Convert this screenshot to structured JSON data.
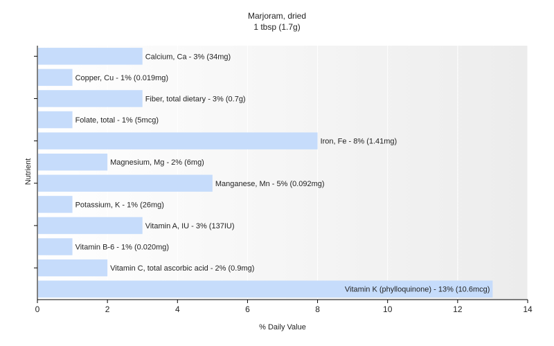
{
  "chart_data": {
    "type": "bar",
    "orientation": "horizontal",
    "title": "Marjoram, dried",
    "subtitle": "1 tbsp (1.7g)",
    "xlabel": "% Daily Value",
    "ylabel": "Nutrient",
    "xlim": [
      0,
      14
    ],
    "xticks": [
      0,
      2,
      4,
      6,
      8,
      10,
      12,
      14
    ],
    "grid": "vertical",
    "bar_color": "#c6dcfb",
    "categories": [
      "Calcium, Ca",
      "Copper, Cu",
      "Fiber, total dietary",
      "Folate, total",
      "Iron, Fe",
      "Magnesium, Mg",
      "Manganese, Mn",
      "Potassium, K",
      "Vitamin A, IU",
      "Vitamin B-6",
      "Vitamin C, total ascorbic acid",
      "Vitamin K (phylloquinone)"
    ],
    "values": [
      3,
      1,
      3,
      1,
      8,
      2,
      5,
      1,
      3,
      1,
      2,
      13
    ],
    "labels": [
      "Calcium, Ca - 3% (34mg)",
      "Copper, Cu - 1% (0.019mg)",
      "Fiber, total dietary - 3% (0.7g)",
      "Folate, total - 1% (5mcg)",
      "Iron, Fe - 8% (1.41mg)",
      "Magnesium, Mg - 2% (6mg)",
      "Manganese, Mn - 5% (0.092mg)",
      "Potassium, K - 1% (26mg)",
      "Vitamin A, IU - 3% (137IU)",
      "Vitamin B-6 - 1% (0.020mg)",
      "Vitamin C, total ascorbic acid - 2% (0.9mg)",
      "Vitamin K (phylloquinone) - 13% (10.6mcg)"
    ]
  }
}
